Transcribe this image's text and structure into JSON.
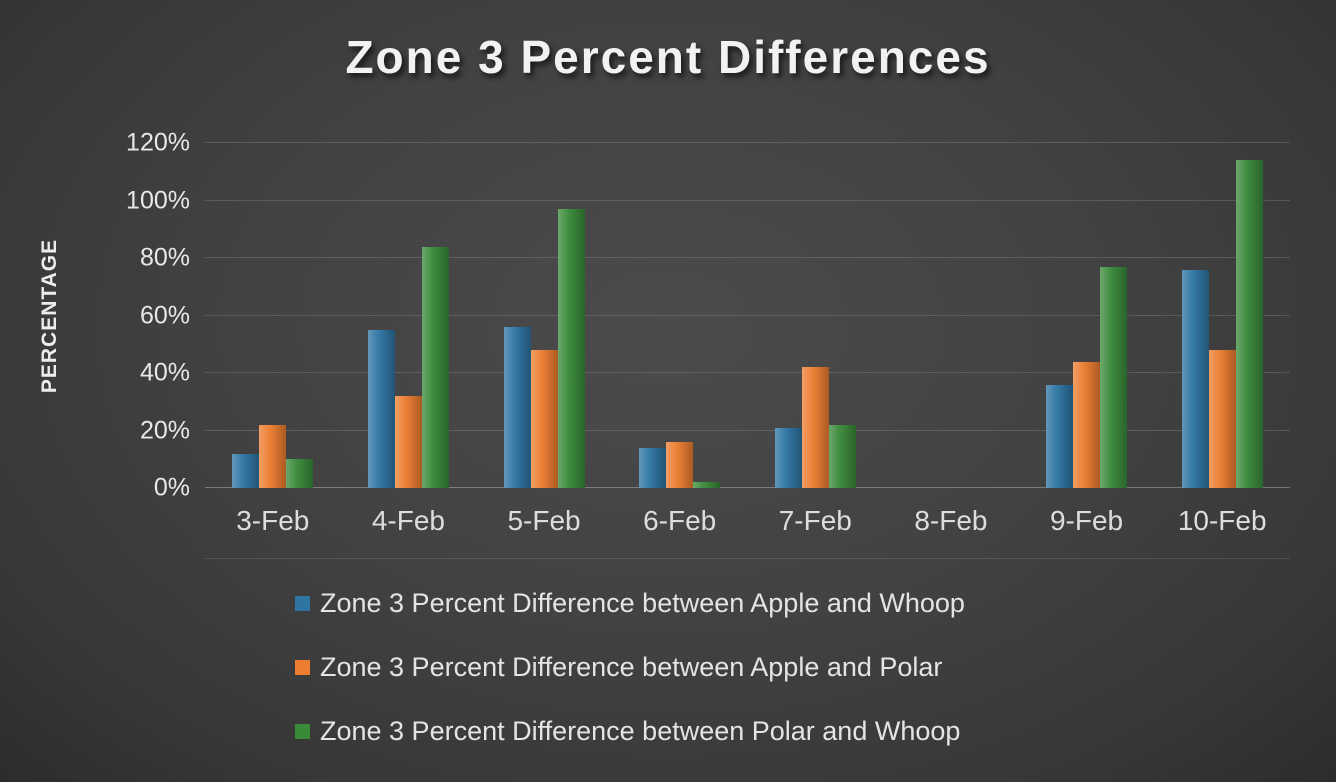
{
  "chart_data": {
    "type": "bar",
    "title": "Zone 3 Percent Differences",
    "xlabel": "",
    "ylabel": "PERCENTAGE",
    "ylim": [
      0,
      120
    ],
    "yticks": [
      "0%",
      "20%",
      "40%",
      "60%",
      "80%",
      "100%",
      "120%"
    ],
    "grid": true,
    "legend_position": "bottom",
    "categories": [
      "3-Feb",
      "4-Feb",
      "5-Feb",
      "6-Feb",
      "7-Feb",
      "8-Feb",
      "9-Feb",
      "10-Feb"
    ],
    "series": [
      {
        "name": "Zone 3 Percent Difference between Apple and Whoop",
        "color": "#2e75a3",
        "values": [
          12,
          55,
          56,
          14,
          21,
          0,
          36,
          76
        ]
      },
      {
        "name": "Zone 3 Percent Difference between Apple and Polar",
        "color": "#ed7d31",
        "values": [
          22,
          32,
          48,
          16,
          42,
          0,
          44,
          48
        ]
      },
      {
        "name": "Zone 3 Percent Difference between Polar and Whoop",
        "color": "#3a8a3a",
        "values": [
          10,
          84,
          97,
          2,
          22,
          0,
          77,
          114
        ]
      }
    ],
    "colors": {
      "background": "#424242",
      "text": "#ededed",
      "gridline": "#5c5c5c"
    }
  }
}
